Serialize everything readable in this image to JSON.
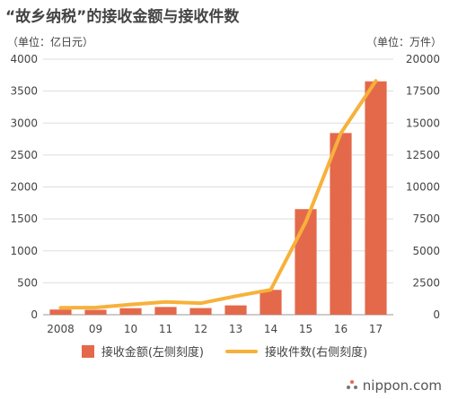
{
  "title": "“故乡纳税”的接收金额与接收件数",
  "unit_left": "（单位：亿日元）",
  "unit_right": "（单位：万件）",
  "brand": "nippon.com",
  "colors": {
    "bar": "#e4694b",
    "line": "#f7b13b",
    "grid": "#dddddd",
    "axis": "#999999"
  },
  "chart_data": {
    "type": "bar",
    "title": "“故乡纳税”的接收金额与接收件数",
    "categories": [
      "2008",
      "09",
      "10",
      "11",
      "12",
      "13",
      "14",
      "15",
      "16",
      "17"
    ],
    "series": [
      {
        "name": "接收金额(左侧刻度)",
        "type": "bar",
        "axis": "left",
        "values": [
          81,
          77,
          102,
          121,
          104,
          146,
          389,
          1653,
          2844,
          3653
        ]
      },
      {
        "name": "接收件数(右侧刻度)",
        "type": "line",
        "axis": "right",
        "values": [
          540,
          560,
          800,
          1000,
          900,
          1450,
          1950,
          7260,
          14200,
          18300
        ]
      }
    ],
    "ylim_left": [
      0,
      4000
    ],
    "yticks_left": [
      0,
      500,
      1000,
      1500,
      2000,
      2500,
      3000,
      3500,
      4000
    ],
    "ylim_right": [
      0,
      20000
    ],
    "yticks_right": [
      0,
      2500,
      5000,
      7500,
      10000,
      12500,
      15000,
      17500,
      20000
    ],
    "legend_position": "bottom",
    "grid": true
  }
}
